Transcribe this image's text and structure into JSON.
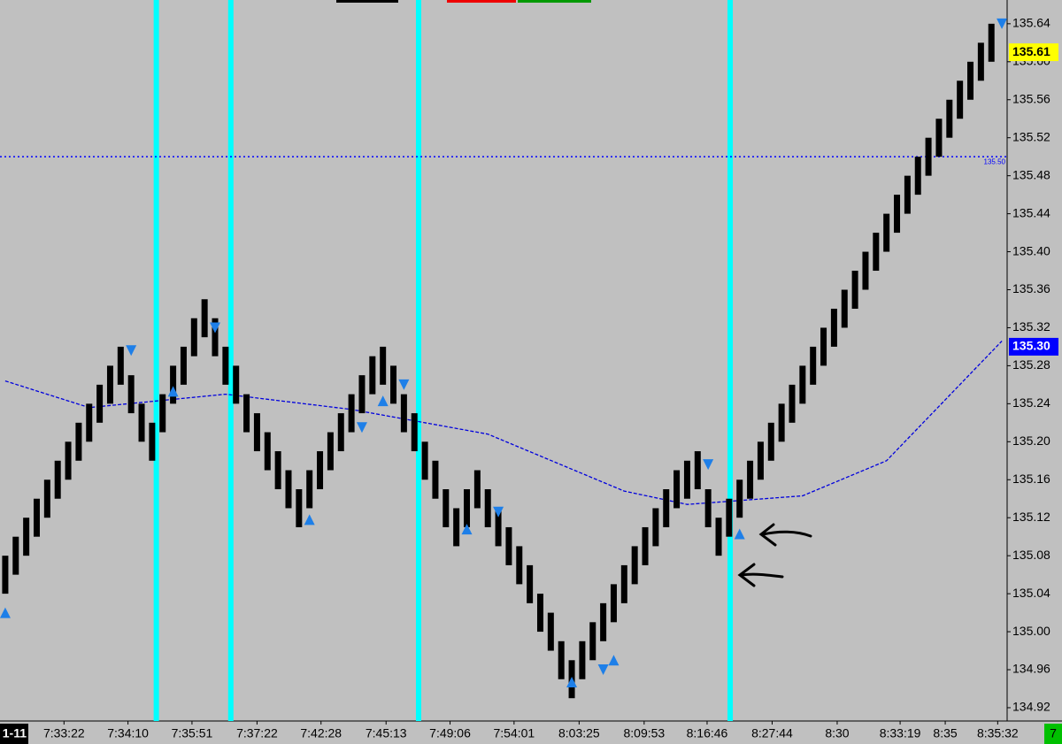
{
  "chart_data": {
    "type": "candlestick",
    "x": [
      0,
      1,
      2,
      3,
      4,
      5,
      6,
      7,
      8,
      9,
      10,
      11,
      12,
      13,
      14,
      15,
      16,
      17,
      18,
      19,
      20,
      21,
      22,
      23,
      24,
      25,
      26,
      27,
      28,
      29,
      30,
      31,
      32,
      33,
      34,
      35,
      36,
      37,
      38,
      39,
      40,
      41,
      42,
      43,
      44,
      45,
      46,
      47,
      48,
      49,
      50,
      51,
      52,
      53,
      54,
      55,
      56,
      57,
      58,
      59,
      60,
      61,
      62,
      63,
      64,
      65,
      66,
      67,
      68,
      69,
      70,
      71,
      72,
      73,
      74,
      75,
      76,
      77,
      78,
      79,
      80,
      81,
      82,
      83,
      84,
      85,
      86,
      87,
      88,
      89,
      90,
      91,
      92,
      93,
      94
    ],
    "open": [
      135.04,
      135.06,
      135.08,
      135.1,
      135.12,
      135.14,
      135.16,
      135.18,
      135.2,
      135.22,
      135.24,
      135.26,
      135.27,
      135.24,
      135.22,
      135.21,
      135.24,
      135.26,
      135.29,
      135.31,
      135.33,
      135.3,
      135.28,
      135.25,
      135.23,
      135.21,
      135.19,
      135.17,
      135.15,
      135.13,
      135.15,
      135.17,
      135.19,
      135.21,
      135.23,
      135.25,
      135.26,
      135.28,
      135.25,
      135.23,
      135.2,
      135.18,
      135.15,
      135.13,
      135.11,
      135.13,
      135.15,
      135.13,
      135.11,
      135.09,
      135.07,
      135.04,
      135.02,
      134.99,
      134.97,
      134.95,
      134.97,
      134.99,
      135.01,
      135.03,
      135.05,
      135.07,
      135.09,
      135.11,
      135.13,
      135.14,
      135.15,
      135.15,
      135.12,
      135.1,
      135.12,
      135.14,
      135.16,
      135.18,
      135.2,
      135.22,
      135.24,
      135.26,
      135.28,
      135.3,
      135.32,
      135.34,
      135.36,
      135.38,
      135.4,
      135.42,
      135.44,
      135.46,
      135.48,
      135.5,
      135.52,
      135.54,
      135.56,
      135.58,
      135.6
    ],
    "close": [
      135.08,
      135.1,
      135.12,
      135.14,
      135.16,
      135.18,
      135.2,
      135.22,
      135.24,
      135.26,
      135.28,
      135.3,
      135.23,
      135.2,
      135.18,
      135.25,
      135.28,
      135.3,
      135.33,
      135.35,
      135.29,
      135.26,
      135.24,
      135.21,
      135.19,
      135.17,
      135.15,
      135.13,
      135.11,
      135.17,
      135.19,
      135.21,
      135.23,
      135.25,
      135.27,
      135.29,
      135.3,
      135.24,
      135.21,
      135.19,
      135.16,
      135.14,
      135.11,
      135.09,
      135.15,
      135.17,
      135.11,
      135.09,
      135.07,
      135.05,
      135.03,
      135.0,
      134.98,
      134.95,
      134.93,
      134.99,
      135.01,
      135.03,
      135.05,
      135.07,
      135.09,
      135.11,
      135.13,
      135.15,
      135.17,
      135.18,
      135.19,
      135.11,
      135.08,
      135.14,
      135.16,
      135.18,
      135.2,
      135.22,
      135.24,
      135.26,
      135.28,
      135.3,
      135.32,
      135.34,
      135.36,
      135.38,
      135.4,
      135.42,
      135.44,
      135.46,
      135.48,
      135.5,
      135.52,
      135.54,
      135.56,
      135.58,
      135.6,
      135.62,
      135.64
    ],
    "bar_color": "#000000",
    "xlim": [
      -0.5,
      95.5
    ],
    "ylim": [
      134.906,
      135.665
    ],
    "yticks": [
      134.92,
      134.96,
      {
        "value": 135,
        "label": "135.00"
      },
      135.04,
      135.08,
      135.12,
      135.16,
      {
        "value": 135.2,
        "label": "135.20"
      },
      135.24,
      135.28,
      135.32,
      135.36,
      {
        "value": 135.4,
        "label": "135.40"
      },
      135.44,
      135.48,
      135.52,
      135.56,
      {
        "value": 135.6,
        "label": "135.60"
      },
      135.64
    ],
    "xticks": [
      {
        "value": 5.6,
        "label": "7:33:22"
      },
      {
        "value": 11.7,
        "label": "7:34:10"
      },
      {
        "value": 17.8,
        "label": "7:35:51"
      },
      {
        "value": 24,
        "label": "7:37:22"
      },
      {
        "value": 30.1,
        "label": "7:42:28"
      },
      {
        "value": 36.3,
        "label": "7:45:13"
      },
      {
        "value": 42.4,
        "label": "7:49:06"
      },
      {
        "value": 48.5,
        "label": "7:54:01"
      },
      {
        "value": 54.7,
        "label": "8:03:25"
      },
      {
        "value": 60.9,
        "label": "8:09:53"
      },
      {
        "value": 66.9,
        "label": "8:16:46"
      },
      {
        "value": 73.1,
        "label": "8:27:44"
      },
      {
        "value": 79.3,
        "label": "8:30"
      },
      {
        "value": 85.3,
        "label": "8:33:19"
      },
      {
        "value": 89.6,
        "label": "8:35"
      },
      {
        "value": 94.6,
        "label": "8:35:32"
      }
    ],
    "date_badge": "1-11",
    "corner_badge": "7",
    "moving_average": {
      "color": "#0000dd",
      "x": [
        0,
        8,
        21,
        33,
        46,
        59,
        65,
        76,
        84,
        95
      ],
      "values": [
        135.264,
        135.236,
        135.25,
        135.234,
        135.208,
        135.148,
        135.134,
        135.143,
        135.18,
        135.306
      ]
    },
    "signals": {
      "color": "#1e7fe8",
      "x": [
        0,
        12,
        16,
        20,
        29,
        34,
        36,
        38,
        44,
        47,
        54,
        57,
        58,
        67,
        70,
        95
      ],
      "values": [
        135.02,
        135.296,
        135.253,
        135.32,
        135.118,
        135.215,
        135.243,
        135.26,
        135.108,
        135.126,
        134.947,
        134.96,
        134.97,
        135.176,
        135.103,
        135.64
      ],
      "direction": [
        "up",
        "down",
        "up",
        "down",
        "up",
        "down",
        "up",
        "down",
        "up",
        "down",
        "up",
        "down",
        "up",
        "down",
        "up",
        "down"
      ]
    },
    "vlines": {
      "color": "#00ffff",
      "x": [
        14.4,
        21.5,
        39.4,
        69.1
      ]
    },
    "hline": {
      "value": 135.5,
      "label": "135.50",
      "color": "#0000ff"
    },
    "price_badges": [
      {
        "value": 135.61,
        "label": "135.61",
        "color": "#ffff00",
        "text_color": "#000000"
      },
      {
        "value": 135.3,
        "label": "135.30",
        "color": "#0000ff",
        "text_color": "#ffffff"
      }
    ]
  }
}
